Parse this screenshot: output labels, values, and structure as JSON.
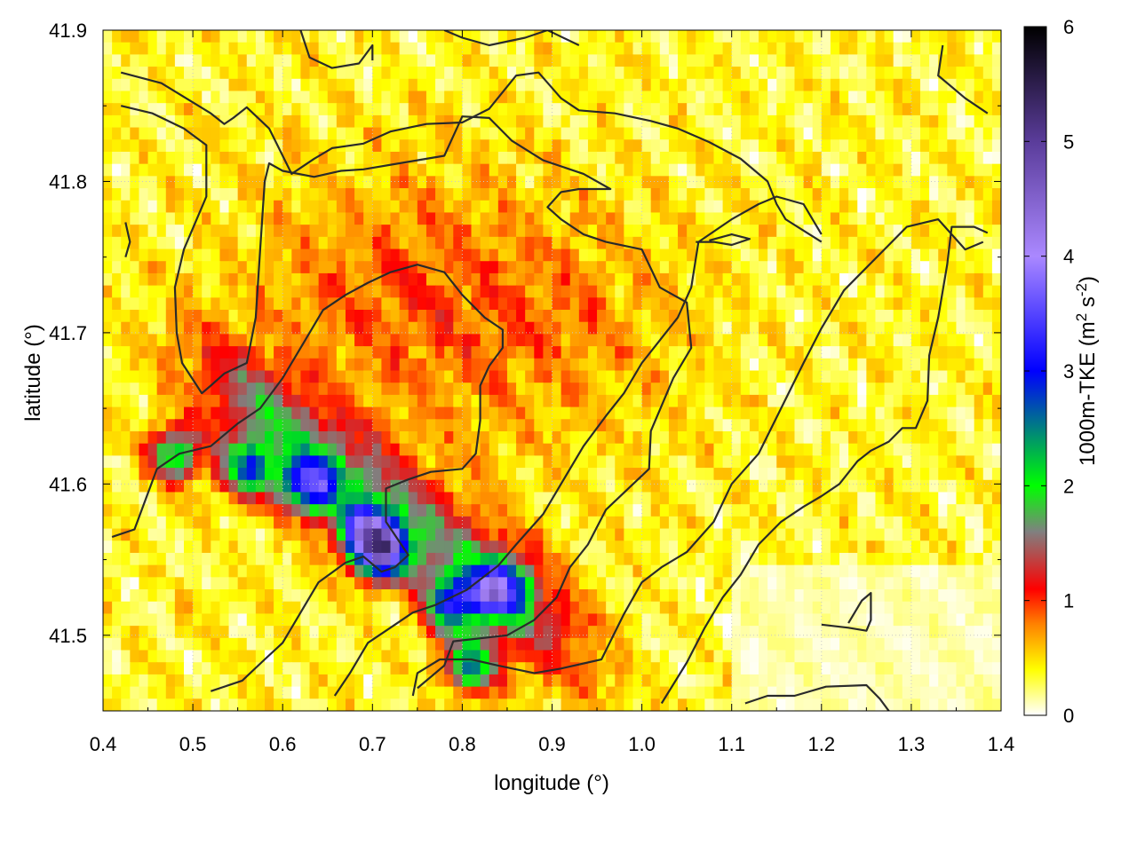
{
  "chart_data": {
    "type": "heatmap",
    "title": "",
    "xlabel": "longitude (°)",
    "ylabel": "latitude (°)",
    "xlim": [
      0.4,
      1.4
    ],
    "ylim": [
      41.45,
      41.9
    ],
    "x_ticks": [
      "0.4",
      "0.5",
      "0.6",
      "0.7",
      "0.8",
      "0.9",
      "1.0",
      "1.1",
      "1.2",
      "1.3",
      "1.4"
    ],
    "y_ticks": [
      "41.5",
      "41.6",
      "41.7",
      "41.8",
      "41.9"
    ],
    "grid": true,
    "colorbar": {
      "label_main": "1000m-TKE (m",
      "label_sup1": "2",
      "label_mid": " s",
      "label_sup2": "-2",
      "label_end": ")",
      "range": [
        0,
        6
      ],
      "ticks": [
        "0",
        "1",
        "2",
        "3",
        "4",
        "5",
        "6"
      ],
      "stops": [
        {
          "value": 0,
          "color": "#ffffff"
        },
        {
          "value": 0.4,
          "color": "#ffff00"
        },
        {
          "value": 0.8,
          "color": "#ff8000"
        },
        {
          "value": 1.1,
          "color": "#ff0000"
        },
        {
          "value": 1.6,
          "color": "#808080"
        },
        {
          "value": 2.0,
          "color": "#00ff00"
        },
        {
          "value": 3.0,
          "color": "#0000ff"
        },
        {
          "value": 4.0,
          "color": "#aa88ff"
        },
        {
          "value": 5.0,
          "color": "#5a3c9a"
        },
        {
          "value": 6.0,
          "color": "#000000"
        }
      ]
    },
    "contours": [
      [
        [
          0.42,
          41.872
        ],
        [
          0.465,
          41.865
        ],
        [
          0.52,
          41.845
        ],
        [
          0.535,
          41.838
        ],
        [
          0.545,
          41.842
        ],
        [
          0.56,
          41.849
        ],
        [
          0.585,
          41.835
        ],
        [
          0.61,
          41.805
        ],
        [
          0.635,
          41.815
        ],
        [
          0.655,
          41.822
        ],
        [
          0.69,
          41.825
        ],
        [
          0.72,
          41.833
        ],
        [
          0.76,
          41.838
        ],
        [
          0.8,
          41.839
        ],
        [
          0.83,
          41.848
        ],
        [
          0.86,
          41.87
        ],
        [
          0.885,
          41.872
        ],
        [
          0.91,
          41.855
        ],
        [
          0.93,
          41.847
        ],
        [
          0.97,
          41.845
        ],
        [
          1.01,
          41.84
        ],
        [
          1.04,
          41.835
        ],
        [
          1.075,
          41.826
        ],
        [
          1.11,
          41.815
        ],
        [
          1.14,
          41.8
        ],
        [
          1.15,
          41.785
        ],
        [
          1.16,
          41.775
        ],
        [
          1.2,
          41.76
        ]
      ],
      [
        [
          0.42,
          41.85
        ],
        [
          0.455,
          41.845
        ],
        [
          0.49,
          41.835
        ],
        [
          0.515,
          41.824
        ],
        [
          0.515,
          41.79
        ],
        [
          0.49,
          41.755
        ],
        [
          0.48,
          41.73
        ],
        [
          0.482,
          41.7
        ],
        [
          0.488,
          41.68
        ],
        [
          0.51,
          41.66
        ],
        [
          0.52,
          41.665
        ],
        [
          0.535,
          41.673
        ],
        [
          0.56,
          41.68
        ],
        [
          0.57,
          41.71
        ],
        [
          0.575,
          41.755
        ],
        [
          0.58,
          41.8
        ],
        [
          0.585,
          41.812
        ],
        [
          0.6,
          41.807
        ],
        [
          0.635,
          41.803
        ],
        [
          0.665,
          41.807
        ],
        [
          0.69,
          41.808
        ],
        [
          0.73,
          41.812
        ],
        [
          0.78,
          41.817
        ],
        [
          0.8,
          41.843
        ],
        [
          0.83,
          41.842
        ],
        [
          0.855,
          41.827
        ],
        [
          0.89,
          41.814
        ],
        [
          0.935,
          41.805
        ],
        [
          0.965,
          41.795
        ],
        [
          0.93,
          41.795
        ],
        [
          0.91,
          41.793
        ],
        [
          0.895,
          41.783
        ],
        [
          0.91,
          41.775
        ],
        [
          0.935,
          41.765
        ],
        [
          0.96,
          41.76
        ],
        [
          1.0,
          41.755
        ],
        [
          1.02,
          41.73
        ],
        [
          1.05,
          41.72
        ],
        [
          1.055,
          41.69
        ],
        [
          1.035,
          41.67
        ],
        [
          1.01,
          41.635
        ],
        [
          1.008,
          41.61
        ],
        [
          0.96,
          41.583
        ],
        [
          0.94,
          41.56
        ],
        [
          0.92,
          41.545
        ],
        [
          0.905,
          41.525
        ],
        [
          0.88,
          41.51
        ],
        [
          0.85,
          41.5
        ],
        [
          0.79,
          41.496
        ],
        [
          0.78,
          41.48
        ],
        [
          0.76,
          41.47
        ],
        [
          0.75,
          41.465
        ]
      ],
      [
        [
          0.41,
          41.565
        ],
        [
          0.435,
          41.57
        ],
        [
          0.46,
          41.61
        ],
        [
          0.485,
          41.62
        ],
        [
          0.52,
          41.625
        ],
        [
          0.55,
          41.64
        ],
        [
          0.575,
          41.65
        ],
        [
          0.6,
          41.67
        ],
        [
          0.625,
          41.695
        ],
        [
          0.645,
          41.715
        ],
        [
          0.67,
          41.725
        ],
        [
          0.695,
          41.733
        ],
        [
          0.72,
          41.74
        ],
        [
          0.75,
          41.745
        ],
        [
          0.78,
          41.74
        ],
        [
          0.8,
          41.725
        ],
        [
          0.825,
          41.71
        ],
        [
          0.845,
          41.702
        ],
        [
          0.845,
          41.69
        ],
        [
          0.83,
          41.678
        ],
        [
          0.82,
          41.665
        ],
        [
          0.82,
          41.642
        ],
        [
          0.815,
          41.62
        ],
        [
          0.8,
          41.61
        ],
        [
          0.765,
          41.608
        ],
        [
          0.74,
          41.603
        ],
        [
          0.715,
          41.597
        ],
        [
          0.715,
          41.575
        ],
        [
          0.74,
          41.553
        ],
        [
          0.725,
          41.545
        ],
        [
          0.71,
          41.542
        ],
        [
          0.69,
          41.552
        ],
        [
          0.67,
          41.548
        ],
        [
          0.64,
          41.535
        ],
        [
          0.62,
          41.515
        ],
        [
          0.6,
          41.495
        ],
        [
          0.58,
          41.484
        ],
        [
          0.555,
          41.47
        ],
        [
          0.52,
          41.463
        ]
      ],
      [
        [
          0.658,
          41.46
        ],
        [
          0.675,
          41.475
        ],
        [
          0.695,
          41.495
        ],
        [
          0.72,
          41.505
        ],
        [
          0.745,
          41.515
        ],
        [
          0.77,
          41.52
        ],
        [
          0.805,
          41.53
        ],
        [
          0.84,
          41.546
        ],
        [
          0.86,
          41.56
        ],
        [
          0.89,
          41.58
        ],
        [
          0.91,
          41.6
        ],
        [
          0.935,
          41.625
        ],
        [
          0.96,
          41.645
        ],
        [
          0.98,
          41.66
        ],
        [
          1.0,
          41.68
        ],
        [
          1.02,
          41.695
        ],
        [
          1.04,
          41.71
        ],
        [
          1.055,
          41.73
        ],
        [
          1.063,
          41.76
        ],
        [
          1.1,
          41.775
        ],
        [
          1.13,
          41.785
        ],
        [
          1.15,
          41.79
        ],
        [
          1.18,
          41.785
        ],
        [
          1.2,
          41.765
        ]
      ],
      [
        [
          0.745,
          41.46
        ],
        [
          0.75,
          41.475
        ],
        [
          0.775,
          41.484
        ],
        [
          0.81,
          41.484
        ],
        [
          0.84,
          41.48
        ],
        [
          0.88,
          41.475
        ],
        [
          0.91,
          41.478
        ],
        [
          0.955,
          41.484
        ],
        [
          0.98,
          41.514
        ],
        [
          1.0,
          41.535
        ],
        [
          1.022,
          41.545
        ],
        [
          1.05,
          41.555
        ],
        [
          1.08,
          41.575
        ],
        [
          1.1,
          41.6
        ],
        [
          1.13,
          41.62
        ],
        [
          1.155,
          41.65
        ],
        [
          1.18,
          41.68
        ],
        [
          1.2,
          41.703
        ],
        [
          1.225,
          41.728
        ],
        [
          1.245,
          41.74
        ],
        [
          1.27,
          41.755
        ],
        [
          1.295,
          41.77
        ],
        [
          1.33,
          41.775
        ],
        [
          1.345,
          41.765
        ],
        [
          1.36,
          41.755
        ],
        [
          1.38,
          41.76
        ]
      ],
      [
        [
          1.022,
          41.455
        ],
        [
          1.05,
          41.482
        ],
        [
          1.07,
          41.505
        ],
        [
          1.09,
          41.525
        ],
        [
          1.11,
          41.54
        ],
        [
          1.13,
          41.56
        ],
        [
          1.155,
          41.575
        ],
        [
          1.18,
          41.585
        ],
        [
          1.2,
          41.592
        ],
        [
          1.22,
          41.6
        ],
        [
          1.24,
          41.615
        ],
        [
          1.255,
          41.622
        ],
        [
          1.275,
          41.628
        ],
        [
          1.29,
          41.637
        ],
        [
          1.305,
          41.637
        ],
        [
          1.318,
          41.655
        ],
        [
          1.32,
          41.685
        ],
        [
          1.33,
          41.71
        ],
        [
          1.34,
          41.745
        ],
        [
          1.345,
          41.77
        ],
        [
          1.37,
          41.77
        ],
        [
          1.385,
          41.766
        ]
      ],
      [
        [
          1.115,
          41.455
        ],
        [
          1.14,
          41.46
        ],
        [
          1.17,
          41.46
        ],
        [
          1.205,
          41.466
        ],
        [
          1.25,
          41.467
        ],
        [
          1.265,
          41.458
        ],
        [
          1.275,
          41.45
        ]
      ],
      [
        [
          1.2,
          41.507
        ],
        [
          1.23,
          41.505
        ],
        [
          1.25,
          41.503
        ],
        [
          1.255,
          41.51
        ],
        [
          1.255,
          41.528
        ],
        [
          1.245,
          41.523
        ],
        [
          1.23,
          41.508
        ]
      ],
      [
        [
          1.06,
          41.76
        ],
        [
          1.08,
          41.76
        ],
        [
          1.1,
          41.758
        ],
        [
          1.12,
          41.762
        ],
        [
          1.1,
          41.765
        ],
        [
          1.075,
          41.761
        ]
      ],
      [
        [
          0.62,
          41.9
        ],
        [
          0.63,
          41.882
        ],
        [
          0.655,
          41.875
        ],
        [
          0.685,
          41.878
        ],
        [
          0.7,
          41.89
        ],
        [
          0.7,
          41.88
        ]
      ],
      [
        [
          0.78,
          41.9
        ],
        [
          0.8,
          41.895
        ],
        [
          0.83,
          41.89
        ],
        [
          0.87,
          41.895
        ],
        [
          0.895,
          41.9
        ],
        [
          0.93,
          41.89
        ]
      ],
      [
        [
          1.335,
          41.89
        ],
        [
          1.33,
          41.87
        ],
        [
          1.36,
          41.855
        ],
        [
          1.385,
          41.845
        ]
      ],
      [
        [
          0.425,
          41.773
        ],
        [
          0.43,
          41.76
        ],
        [
          0.425,
          41.75
        ]
      ]
    ]
  }
}
